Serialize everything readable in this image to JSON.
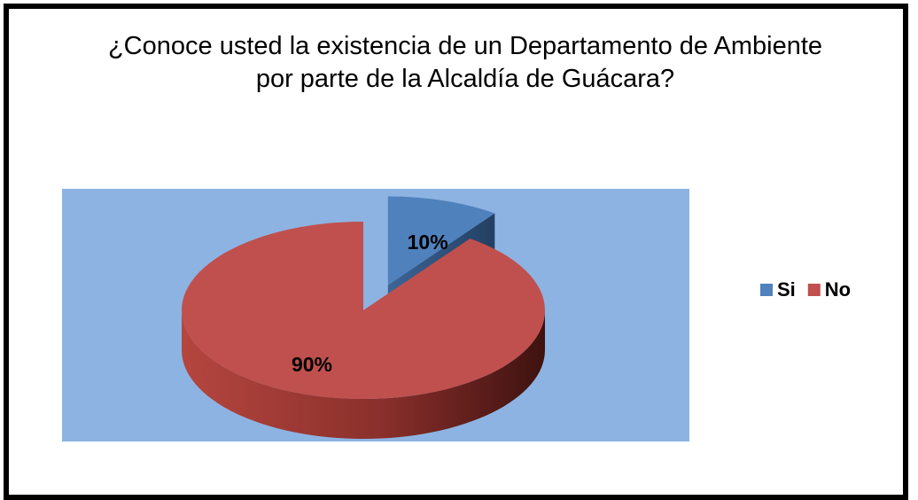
{
  "chart_data": {
    "type": "pie",
    "title": "¿Conoce usted la existencia de un Departamento de Ambiente por parte de la Alcaldía de Guácara?",
    "categories": [
      "Si",
      "No"
    ],
    "values": [
      10,
      90
    ],
    "value_labels": [
      "10%",
      "90%"
    ],
    "colors": [
      "#4f81bd",
      "#c0504d"
    ],
    "legend": "right"
  }
}
